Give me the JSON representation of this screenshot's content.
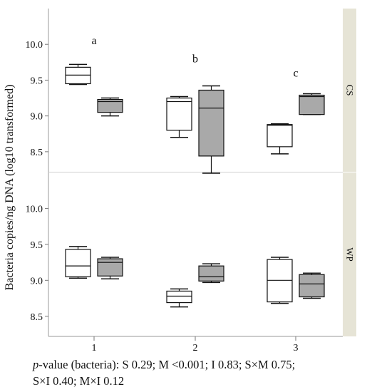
{
  "chart_data": {
    "type": "boxplot",
    "ylabel": "Bacteria copies/ng DNA (log10 transformed)",
    "categories": [
      "1",
      "2",
      "3"
    ],
    "y_ticks": [
      "10.0",
      "9.5",
      "9.0",
      "8.5"
    ],
    "ylim": [
      8.22,
      10.5
    ],
    "series_colors": {
      "white": "#ffffff",
      "gray": "#a9a9a9"
    },
    "panels": [
      {
        "name": "CS",
        "letters": [
          {
            "category": "1",
            "text": "a",
            "y": 10.0
          },
          {
            "category": "2",
            "text": "b",
            "y": 9.75
          },
          {
            "category": "3",
            "text": "c",
            "y": 9.55
          }
        ],
        "boxes": [
          {
            "category": "1",
            "fill": "white",
            "min": 9.44,
            "q1": 9.45,
            "median": 9.57,
            "q3": 9.68,
            "max": 9.72
          },
          {
            "category": "1",
            "fill": "gray",
            "min": 9.0,
            "q1": 9.05,
            "median": 9.2,
            "q3": 9.23,
            "max": 9.25
          },
          {
            "category": "2",
            "fill": "white",
            "min": 8.7,
            "q1": 8.8,
            "median": 9.2,
            "q3": 9.25,
            "max": 9.27
          },
          {
            "category": "2",
            "fill": "gray",
            "min": 8.2,
            "q1": 8.44,
            "median": 9.11,
            "q3": 9.36,
            "max": 9.42
          },
          {
            "category": "3",
            "fill": "white",
            "min": 8.47,
            "q1": 8.57,
            "median": 8.87,
            "q3": 8.88,
            "max": 8.89
          },
          {
            "category": "3",
            "fill": "gray",
            "min": 9.02,
            "q1": 9.02,
            "median": 9.27,
            "q3": 9.29,
            "max": 9.31
          }
        ]
      },
      {
        "name": "WP",
        "letters": [],
        "boxes": [
          {
            "category": "1",
            "fill": "white",
            "min": 9.03,
            "q1": 9.05,
            "median": 9.2,
            "q3": 9.43,
            "max": 9.47
          },
          {
            "category": "1",
            "fill": "gray",
            "min": 9.02,
            "q1": 9.06,
            "median": 9.25,
            "q3": 9.3,
            "max": 9.32
          },
          {
            "category": "2",
            "fill": "white",
            "min": 8.63,
            "q1": 8.69,
            "median": 8.78,
            "q3": 8.85,
            "max": 8.88
          },
          {
            "category": "2",
            "fill": "gray",
            "min": 8.97,
            "q1": 8.99,
            "median": 9.05,
            "q3": 9.2,
            "max": 9.23
          },
          {
            "category": "3",
            "fill": "white",
            "min": 8.68,
            "q1": 8.7,
            "median": 9.0,
            "q3": 9.29,
            "max": 9.32
          },
          {
            "category": "3",
            "fill": "gray",
            "min": 8.75,
            "q1": 8.77,
            "median": 8.95,
            "q3": 9.08,
            "max": 9.1
          }
        ]
      }
    ]
  },
  "caption": {
    "pvalue_label": "p",
    "line1_rest": "-value (bacteria): S 0.29; M <0.001; I 0.83; S×M 0.75;",
    "line2": "S×I 0.40;  M×I 0.12"
  }
}
